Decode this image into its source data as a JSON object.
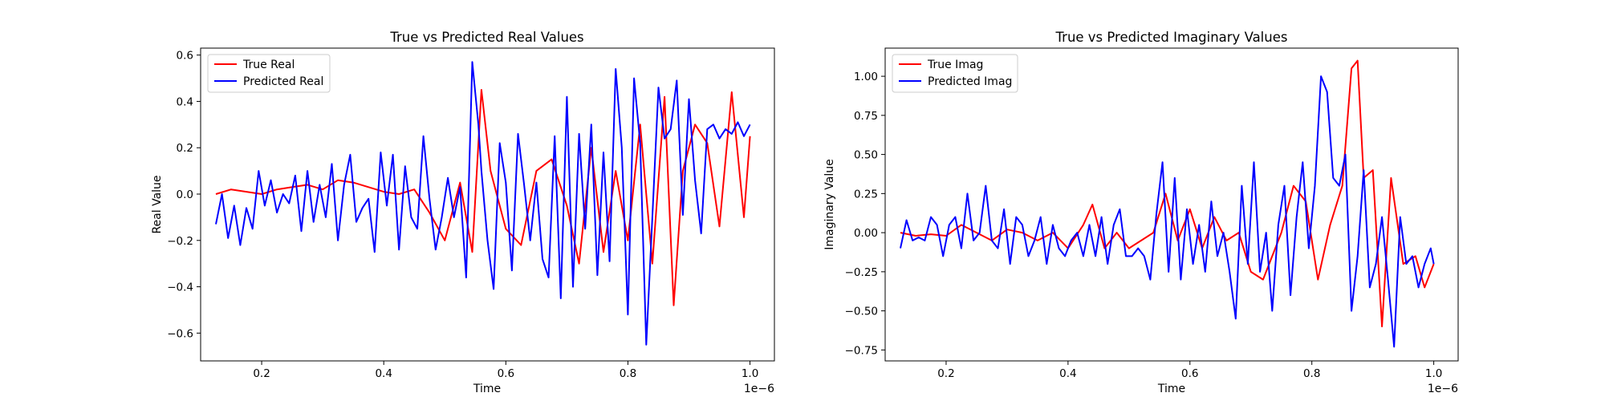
{
  "chart_data": [
    {
      "type": "line",
      "title": "True vs Predicted Real Values",
      "xlabel": "Time",
      "ylabel": "Real Value",
      "x_offset_label": "1e−6",
      "xlim": [
        0.1,
        1.04
      ],
      "ylim": [
        -0.72,
        0.63
      ],
      "x_ticks": [
        0.2,
        0.4,
        0.6,
        0.8,
        1.0
      ],
      "x_tick_labels": [
        "0.2",
        "0.4",
        "0.6",
        "0.8",
        "1.0"
      ],
      "y_ticks": [
        -0.6,
        -0.4,
        -0.2,
        0.0,
        0.2,
        0.4,
        0.6
      ],
      "y_tick_labels": [
        "−0.6",
        "−0.4",
        "−0.2",
        "0.0",
        "0.2",
        "0.4",
        "0.6"
      ],
      "grid": false,
      "legend_position": "top-left",
      "series": [
        {
          "name": "True Real",
          "color": "#ff0000",
          "x": [
            0.125,
            0.15,
            0.175,
            0.2,
            0.225,
            0.25,
            0.275,
            0.3,
            0.325,
            0.35,
            0.375,
            0.4,
            0.425,
            0.45,
            0.475,
            0.5,
            0.525,
            0.545,
            0.56,
            0.575,
            0.6,
            0.625,
            0.65,
            0.675,
            0.7,
            0.72,
            0.74,
            0.76,
            0.78,
            0.8,
            0.82,
            0.84,
            0.86,
            0.875,
            0.89,
            0.91,
            0.93,
            0.95,
            0.97,
            0.99,
            1.0
          ],
          "y": [
            0.0,
            0.02,
            0.01,
            0.0,
            0.02,
            0.03,
            0.04,
            0.02,
            0.06,
            0.05,
            0.03,
            0.01,
            0.0,
            0.02,
            -0.08,
            -0.2,
            0.05,
            -0.25,
            0.45,
            0.1,
            -0.15,
            -0.22,
            0.1,
            0.15,
            -0.05,
            -0.3,
            0.2,
            -0.25,
            0.1,
            -0.2,
            0.3,
            -0.3,
            0.42,
            -0.48,
            0.1,
            0.3,
            0.22,
            -0.14,
            0.44,
            -0.1,
            0.25
          ]
        },
        {
          "name": "Predicted Real",
          "color": "#0000ff",
          "x": [
            0.125,
            0.135,
            0.145,
            0.155,
            0.165,
            0.175,
            0.185,
            0.195,
            0.205,
            0.215,
            0.225,
            0.235,
            0.245,
            0.255,
            0.265,
            0.275,
            0.285,
            0.295,
            0.305,
            0.315,
            0.325,
            0.335,
            0.345,
            0.355,
            0.365,
            0.375,
            0.385,
            0.395,
            0.405,
            0.415,
            0.425,
            0.435,
            0.445,
            0.455,
            0.465,
            0.475,
            0.485,
            0.495,
            0.505,
            0.515,
            0.525,
            0.535,
            0.545,
            0.555,
            0.56,
            0.57,
            0.58,
            0.59,
            0.6,
            0.61,
            0.62,
            0.63,
            0.64,
            0.65,
            0.66,
            0.67,
            0.68,
            0.69,
            0.7,
            0.71,
            0.72,
            0.73,
            0.74,
            0.75,
            0.76,
            0.77,
            0.78,
            0.79,
            0.8,
            0.81,
            0.82,
            0.83,
            0.84,
            0.85,
            0.86,
            0.87,
            0.88,
            0.89,
            0.9,
            0.91,
            0.92,
            0.93,
            0.94,
            0.95,
            0.96,
            0.97,
            0.98,
            0.99,
            1.0
          ],
          "y": [
            -0.13,
            0.0,
            -0.19,
            -0.05,
            -0.22,
            -0.06,
            -0.15,
            0.1,
            -0.05,
            0.06,
            -0.08,
            0.0,
            -0.04,
            0.08,
            -0.16,
            0.1,
            -0.12,
            0.04,
            -0.1,
            0.13,
            -0.2,
            0.04,
            0.17,
            -0.12,
            -0.06,
            -0.02,
            -0.25,
            0.18,
            -0.05,
            0.17,
            -0.24,
            0.12,
            -0.1,
            -0.15,
            0.25,
            -0.02,
            -0.24,
            -0.1,
            0.07,
            -0.1,
            0.03,
            -0.36,
            0.57,
            0.3,
            0.1,
            -0.2,
            -0.41,
            0.22,
            0.05,
            -0.33,
            0.26,
            0.04,
            -0.2,
            0.05,
            -0.28,
            -0.36,
            0.25,
            -0.45,
            0.42,
            -0.4,
            0.26,
            -0.15,
            0.3,
            -0.35,
            0.18,
            -0.29,
            0.54,
            0.2,
            -0.52,
            0.5,
            0.22,
            -0.65,
            -0.1,
            0.46,
            0.24,
            0.28,
            0.49,
            -0.09,
            0.41,
            0.06,
            -0.17,
            0.28,
            0.3,
            0.24,
            0.28,
            0.26,
            0.31,
            0.25,
            0.3
          ]
        }
      ]
    },
    {
      "type": "line",
      "title": "True vs Predicted Imaginary Values",
      "xlabel": "Time",
      "ylabel": "Imaginary Value",
      "x_offset_label": "1e−6",
      "xlim": [
        0.1,
        1.04
      ],
      "ylim": [
        -0.82,
        1.18
      ],
      "x_ticks": [
        0.2,
        0.4,
        0.6,
        0.8,
        1.0
      ],
      "x_tick_labels": [
        "0.2",
        "0.4",
        "0.6",
        "0.8",
        "1.0"
      ],
      "y_ticks": [
        -0.75,
        -0.5,
        -0.25,
        0.0,
        0.25,
        0.5,
        0.75,
        1.0
      ],
      "y_tick_labels": [
        "−0.75",
        "−0.50",
        "−0.25",
        "0.00",
        "0.25",
        "0.50",
        "0.75",
        "1.00"
      ],
      "grid": false,
      "legend_position": "top-left",
      "series": [
        {
          "name": "True Imag",
          "color": "#ff0000",
          "x": [
            0.125,
            0.15,
            0.175,
            0.2,
            0.225,
            0.25,
            0.275,
            0.3,
            0.325,
            0.35,
            0.375,
            0.4,
            0.425,
            0.44,
            0.46,
            0.48,
            0.5,
            0.52,
            0.54,
            0.56,
            0.58,
            0.6,
            0.62,
            0.64,
            0.66,
            0.68,
            0.7,
            0.72,
            0.73,
            0.75,
            0.77,
            0.79,
            0.81,
            0.83,
            0.85,
            0.865,
            0.875,
            0.885,
            0.9,
            0.915,
            0.93,
            0.95,
            0.97,
            0.985,
            1.0
          ],
          "y": [
            0.0,
            -0.02,
            -0.01,
            -0.02,
            0.05,
            0.0,
            -0.05,
            0.02,
            0.0,
            -0.05,
            0.0,
            -0.1,
            0.05,
            0.18,
            -0.1,
            0.0,
            -0.1,
            -0.05,
            0.0,
            0.25,
            -0.05,
            0.15,
            -0.1,
            0.1,
            -0.05,
            0.0,
            -0.25,
            -0.3,
            -0.2,
            0.0,
            0.3,
            0.2,
            -0.3,
            0.05,
            0.3,
            1.05,
            1.1,
            0.35,
            0.4,
            -0.6,
            0.35,
            -0.2,
            -0.15,
            -0.35,
            -0.2
          ]
        },
        {
          "name": "Predicted Imag",
          "color": "#0000ff",
          "x": [
            0.125,
            0.135,
            0.145,
            0.155,
            0.165,
            0.175,
            0.185,
            0.195,
            0.205,
            0.215,
            0.225,
            0.235,
            0.245,
            0.255,
            0.265,
            0.275,
            0.285,
            0.295,
            0.305,
            0.315,
            0.325,
            0.335,
            0.345,
            0.355,
            0.365,
            0.375,
            0.385,
            0.395,
            0.405,
            0.415,
            0.425,
            0.435,
            0.445,
            0.455,
            0.465,
            0.475,
            0.485,
            0.495,
            0.505,
            0.515,
            0.525,
            0.535,
            0.545,
            0.555,
            0.565,
            0.575,
            0.585,
            0.595,
            0.605,
            0.615,
            0.625,
            0.635,
            0.645,
            0.655,
            0.665,
            0.675,
            0.685,
            0.695,
            0.705,
            0.715,
            0.725,
            0.735,
            0.745,
            0.755,
            0.765,
            0.775,
            0.785,
            0.795,
            0.805,
            0.815,
            0.825,
            0.835,
            0.845,
            0.855,
            0.865,
            0.875,
            0.885,
            0.895,
            0.905,
            0.915,
            0.925,
            0.935,
            0.945,
            0.955,
            0.965,
            0.975,
            0.985,
            0.995,
            1.0
          ],
          "y": [
            -0.1,
            0.08,
            -0.05,
            -0.03,
            -0.05,
            0.1,
            0.05,
            -0.15,
            0.05,
            0.1,
            -0.1,
            0.25,
            -0.05,
            0.0,
            0.3,
            -0.05,
            -0.1,
            0.15,
            -0.2,
            0.1,
            0.05,
            -0.15,
            -0.05,
            0.1,
            -0.2,
            0.05,
            -0.1,
            -0.15,
            -0.05,
            0.0,
            -0.15,
            0.05,
            -0.15,
            0.1,
            -0.2,
            0.05,
            0.15,
            -0.15,
            -0.15,
            -0.1,
            -0.15,
            -0.3,
            0.12,
            0.45,
            -0.25,
            0.35,
            -0.3,
            0.15,
            -0.2,
            0.05,
            -0.25,
            0.2,
            -0.15,
            0.0,
            -0.25,
            -0.55,
            0.3,
            -0.2,
            0.45,
            -0.25,
            0.0,
            -0.5,
            0.05,
            0.3,
            -0.4,
            0.1,
            0.45,
            -0.1,
            0.3,
            1.0,
            0.9,
            0.35,
            0.3,
            0.5,
            -0.5,
            -0.15,
            0.4,
            -0.35,
            -0.2,
            0.1,
            -0.3,
            -0.73,
            0.1,
            -0.2,
            -0.15,
            -0.35,
            -0.2,
            -0.1,
            -0.2
          ]
        }
      ]
    }
  ]
}
